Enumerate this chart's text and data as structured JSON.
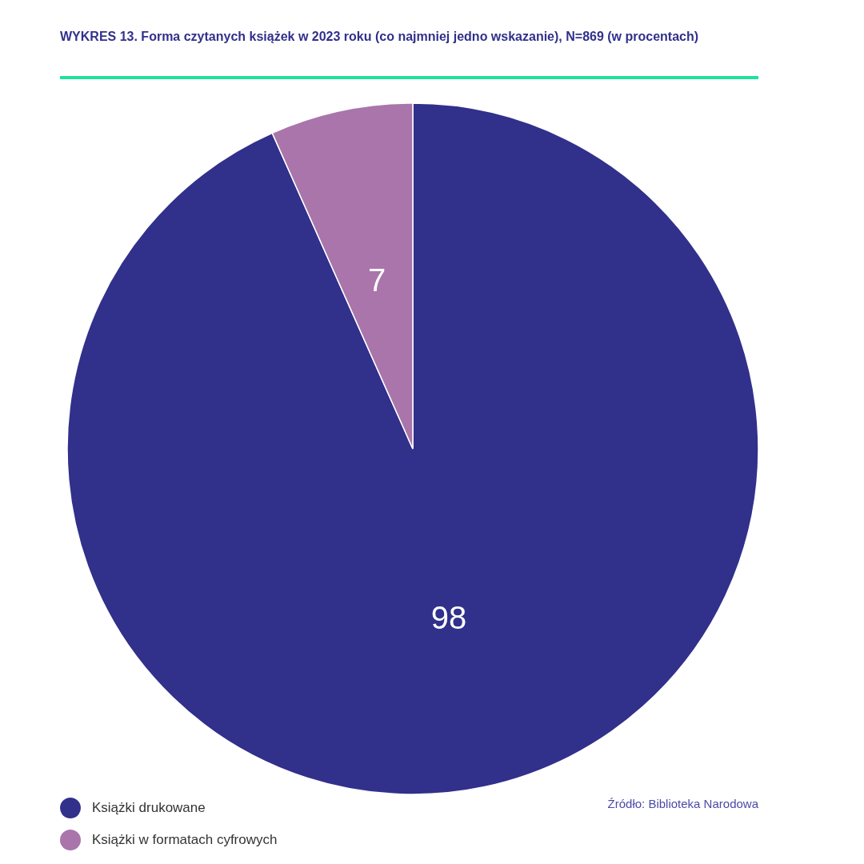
{
  "chart_data": {
    "type": "pie",
    "title": "WYKRES 13.  Forma czytanych książek w 2023 roku (co najmniej jedno wskazanie), N=869 (w procentach)",
    "categories": [
      "Książki drukowane",
      "Książki w formatach cyfrowych"
    ],
    "values": [
      98,
      7
    ],
    "colors": [
      "#31308b",
      "#a975ab"
    ],
    "data_labels": true,
    "legend": "bottom left",
    "annotations": [
      "Źródło: Biblioteka Narodowa"
    ]
  }
}
